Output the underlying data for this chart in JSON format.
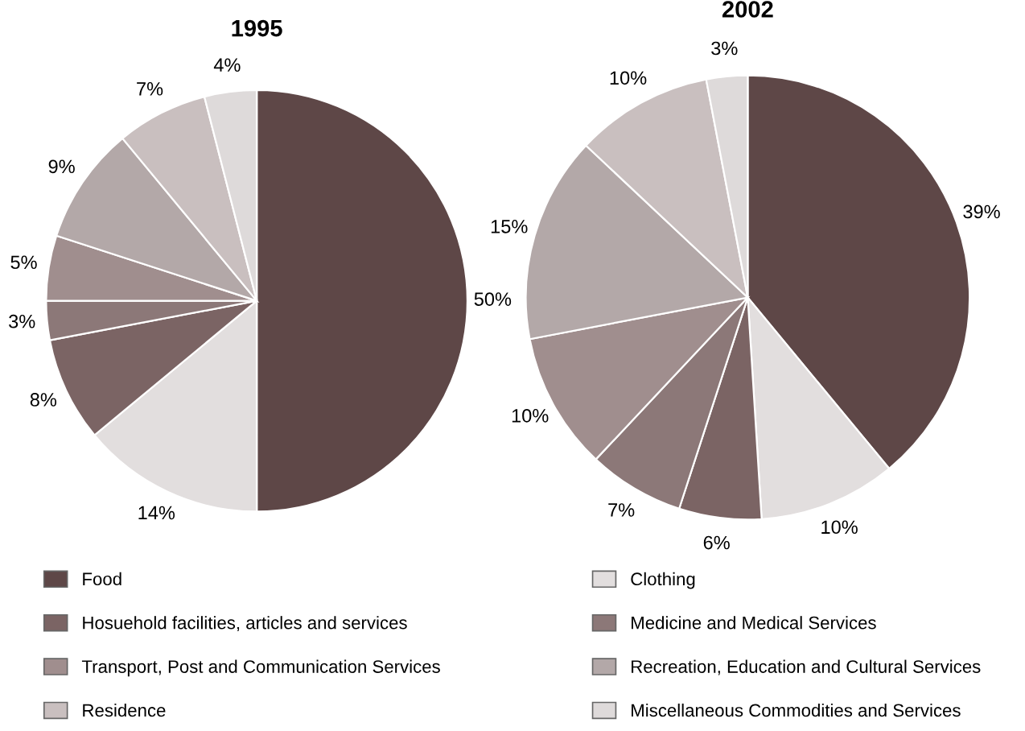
{
  "chart_data": [
    {
      "type": "pie",
      "title": "1995",
      "categories": [
        "Food",
        "Clothing",
        "Hosuehold facilities, articles and services",
        "Medicine and Medical Services",
        "Transport, Post and Communication Services",
        "Recreation, Education and Cultural Services",
        "Residence",
        "Miscellaneous Commodities and Services"
      ],
      "values": [
        50,
        14,
        8,
        3,
        5,
        9,
        7,
        4
      ],
      "value_labels": [
        "50%",
        "14%",
        "8%",
        "3%",
        "5%",
        "9%",
        "7%",
        "4%"
      ],
      "colors": [
        "#5e4747",
        "#e2dede",
        "#7b6464",
        "#8c7878",
        "#a08e8e",
        "#b3a8a8",
        "#c9bfbf",
        "#dedada"
      ],
      "legend": "bottom"
    },
    {
      "type": "pie",
      "title": "2002",
      "values": [
        39,
        10,
        6,
        7,
        10,
        15,
        10,
        3
      ],
      "value_labels": [
        "39%",
        "10%",
        "6%",
        "7%",
        "10%",
        "15%",
        "10%",
        "3%"
      ],
      "colors": [
        "#5e4747",
        "#e2dede",
        "#7b6464",
        "#8c7878",
        "#a08e8e",
        "#b3a8a8",
        "#c9bfbf",
        "#dedada"
      ]
    }
  ]
}
